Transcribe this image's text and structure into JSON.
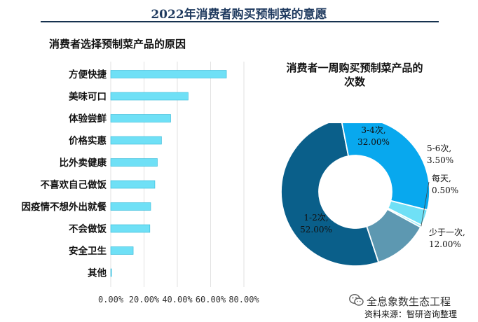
{
  "title": "2022年消费者购买预制菜的意愿",
  "watermark": "全息象数生态工程",
  "source": "资料来源：智研咨询整理",
  "colors": {
    "bar": "#6fe0f6",
    "bar_edge": "#32b8d8",
    "grid": "#e2e2e2",
    "slices": [
      "#0a5f8a",
      "#08a8ee",
      "#6fe0f6",
      "#8eeaf8",
      "#5d98b1"
    ]
  },
  "chart_data": [
    {
      "type": "bar",
      "orientation": "horizontal",
      "title": "消费者选择预制菜产品的原因",
      "categories": [
        "方便快捷",
        "美味可口",
        "体验尝鲜",
        "价格实惠",
        "比外卖健康",
        "不喜欢自己做饭",
        "因疫情不想外出就餐",
        "不会做饭",
        "安全卫生",
        "其他"
      ],
      "values": [
        69.5,
        46.5,
        36.0,
        30.5,
        28.0,
        26.5,
        24.0,
        23.5,
        13.5,
        0.5
      ],
      "xlim": [
        0,
        80
      ],
      "xticks": [
        "0.00%",
        "20.00%",
        "40.00%",
        "60.00%",
        "80.00%"
      ],
      "unit": "%",
      "grid": true
    },
    {
      "type": "pie",
      "variant": "donut",
      "title_lines": [
        "消费者一周购买预制菜产品的",
        "次数"
      ],
      "slices": [
        {
          "name": "1-2次,",
          "value": 52.0,
          "label": "52.00%"
        },
        {
          "name": "3-4次,",
          "value": 32.0,
          "label": "32.00%"
        },
        {
          "name": "5-6次,",
          "value": 3.5,
          "label": "3.50%"
        },
        {
          "name": "每天,",
          "value": 0.5,
          "label": "0.50%"
        },
        {
          "name": "少于一次,",
          "value": 12.0,
          "label": "12.00%"
        }
      ]
    }
  ]
}
